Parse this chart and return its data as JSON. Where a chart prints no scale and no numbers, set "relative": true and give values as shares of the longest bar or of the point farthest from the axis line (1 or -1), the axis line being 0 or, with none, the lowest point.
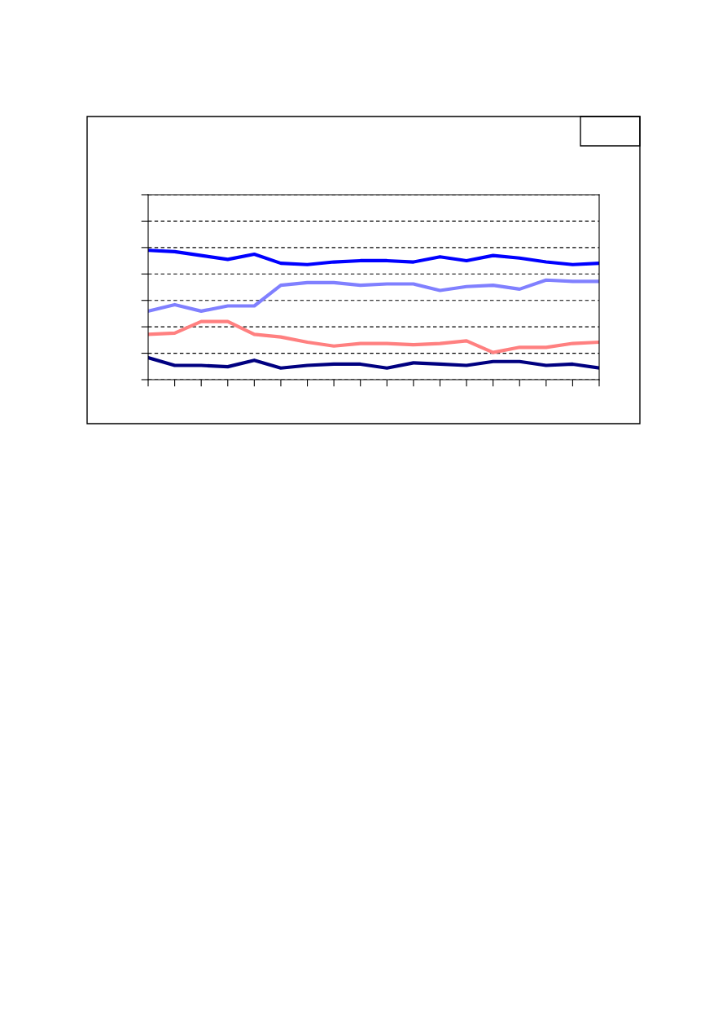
{
  "chart_data": {
    "type": "line",
    "relative": true,
    "grid": "y",
    "tick_labels": false,
    "line_style": "solid",
    "marker": "none",
    "categories": [
      null,
      null,
      null,
      null,
      null,
      null,
      null,
      null,
      null,
      null,
      null,
      null,
      null,
      null,
      null,
      null,
      null,
      null
    ],
    "series": [
      {
        "color": "#0000ff",
        "values": [
          1.0,
          0.99,
          0.96,
          0.93,
          0.97,
          0.9,
          0.89,
          0.91,
          0.92,
          0.92,
          0.91,
          0.95,
          0.92,
          0.96,
          0.94,
          0.91,
          0.89,
          0.9
        ]
      },
      {
        "color": "#8080ff",
        "values": [
          0.53,
          0.58,
          0.53,
          0.57,
          0.57,
          0.73,
          0.75,
          0.75,
          0.73,
          0.74,
          0.74,
          0.69,
          0.72,
          0.73,
          0.7,
          0.77,
          0.76,
          0.76
        ]
      },
      {
        "color": "#ff8080",
        "values": [
          0.35,
          0.36,
          0.45,
          0.45,
          0.35,
          0.33,
          0.29,
          0.26,
          0.28,
          0.28,
          0.27,
          0.28,
          0.3,
          0.21,
          0.25,
          0.25,
          0.28,
          0.29
        ]
      },
      {
        "color": "#000080",
        "values": [
          0.17,
          0.11,
          0.11,
          0.1,
          0.15,
          0.09,
          0.11,
          0.12,
          0.12,
          0.09,
          0.13,
          0.12,
          0.11,
          0.14,
          0.14,
          0.11,
          0.12,
          0.09
        ]
      }
    ]
  }
}
